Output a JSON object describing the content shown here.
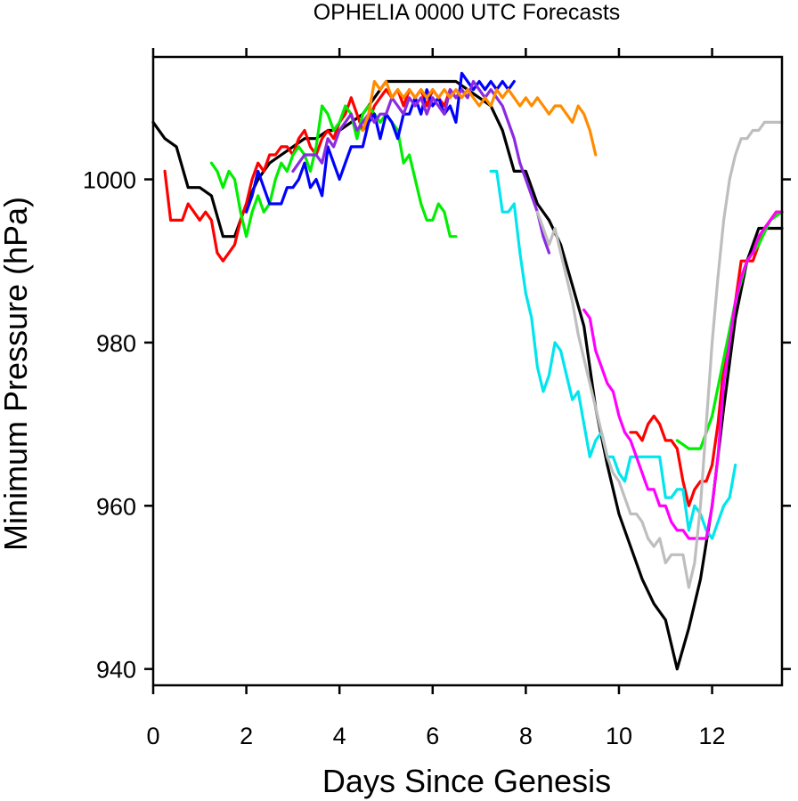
{
  "chart_data": {
    "type": "line",
    "title": "OPHELIA 0000 UTC Forecasts",
    "xlabel": "Days Since Genesis",
    "ylabel": "Minimum Pressure (hPa)",
    "xlim": [
      0,
      13.5
    ],
    "ylim": [
      938,
      1015
    ],
    "xticks": [
      0,
      2,
      4,
      6,
      8,
      10,
      12
    ],
    "yticks": [
      940,
      960,
      980,
      1000
    ],
    "grid": false,
    "legend": "none",
    "series": [
      {
        "color": "#000000",
        "x": [
          0,
          0.25,
          0.5,
          0.75,
          1,
          1.25,
          1.5,
          1.75,
          2,
          2.25,
          2.5,
          2.75,
          3,
          3.25,
          3.5,
          3.75,
          4,
          4.25,
          4.5,
          4.75,
          5,
          5.25,
          5.5,
          5.75,
          6,
          6.25,
          6.5,
          6.75,
          7,
          7.25,
          7.5,
          7.75,
          8,
          8.25,
          8.5,
          8.75,
          9,
          9.25,
          9.5,
          9.75,
          10,
          10.25,
          10.5,
          10.75,
          11,
          11.25,
          11.5,
          11.75,
          12,
          12.25,
          12.5,
          12.75,
          13,
          13.25,
          13.5
        ],
        "y": [
          1007,
          1005,
          1004,
          999,
          999,
          998,
          993,
          993,
          997,
          1000,
          1002,
          1003,
          1004,
          1005,
          1005,
          1006,
          1006,
          1007,
          1008,
          1010,
          1012,
          1012,
          1012,
          1012,
          1012,
          1012,
          1012,
          1011,
          1010,
          1009,
          1006,
          1001,
          1001,
          997,
          995,
          992,
          987,
          982,
          972,
          965,
          959,
          955,
          951,
          948,
          946,
          940,
          945,
          951,
          960,
          972,
          983,
          990,
          994,
          994,
          994
        ]
      },
      {
        "color": "#ff0000",
        "x": [
          0.25,
          0.375,
          0.5,
          0.625,
          0.75,
          0.875,
          1,
          1.125,
          1.25,
          1.375,
          1.5,
          1.625,
          1.75,
          1.875,
          2,
          2.125,
          2.25,
          2.375,
          2.5,
          2.625,
          2.75,
          2.875,
          3,
          3.125,
          3.25,
          3.375,
          3.5,
          3.625,
          3.75,
          3.875,
          4,
          4.125,
          4.25,
          4.375,
          4.5,
          4.625,
          4.75,
          4.875,
          5,
          5.125,
          5.25,
          5.375,
          5.5,
          5.625,
          5.75,
          5.875,
          6,
          6.125,
          6.25,
          6.375,
          6.5,
          6.625,
          6.75
        ],
        "y": [
          1001,
          995,
          995,
          995,
          997,
          996,
          995,
          996,
          995,
          991,
          990,
          991,
          992,
          995,
          997,
          1000,
          1002,
          1001,
          1003,
          1003,
          1004,
          1004,
          1003,
          1005,
          1006,
          1004,
          1003,
          1005,
          1006,
          1005,
          1007,
          1008,
          1010,
          1008,
          1006,
          1007,
          1009,
          1010,
          1011,
          1010,
          1011,
          1009,
          1011,
          1010,
          1011,
          1009,
          1011,
          1010,
          1009,
          1011,
          1010,
          1011,
          1010
        ]
      },
      {
        "color": "#ff0000",
        "x": [
          10.25,
          10.375,
          10.5,
          10.625,
          10.75,
          10.875,
          11,
          11.125,
          11.25,
          11.375,
          11.5,
          11.625,
          11.75,
          11.875,
          12,
          12.125,
          12.25,
          12.375,
          12.5,
          12.625,
          12.75,
          12.875,
          13,
          13.125,
          13.25,
          13.375,
          13.5
        ],
        "y": [
          969,
          969,
          968,
          970,
          971,
          970,
          968,
          968,
          967,
          963,
          960,
          962,
          963,
          963,
          965,
          970,
          977,
          981,
          985,
          990,
          990,
          990,
          992,
          994,
          995,
          996,
          996
        ]
      },
      {
        "color": "#00ee00",
        "x": [
          1.25,
          1.375,
          1.5,
          1.625,
          1.75,
          1.875,
          2,
          2.125,
          2.25,
          2.375,
          2.5,
          2.625,
          2.75,
          2.875,
          3,
          3.125,
          3.25,
          3.375,
          3.5,
          3.625,
          3.75,
          3.875,
          4,
          4.125,
          4.25,
          4.375,
          4.5,
          4.625,
          4.75,
          4.875,
          5,
          5.125,
          5.25,
          5.375,
          5.5,
          5.625,
          5.75,
          5.875,
          6,
          6.125,
          6.25,
          6.375,
          6.5
        ],
        "y": [
          1002,
          1001,
          999,
          1001,
          1000,
          996,
          993,
          996,
          998,
          996,
          997,
          1000,
          1002,
          1001,
          1003,
          1004,
          1003,
          1001,
          1004,
          1009,
          1008,
          1006,
          1007,
          1009,
          1008,
          1005,
          1008,
          1009,
          1008,
          1007,
          1008,
          1007,
          1006,
          1002,
          1003,
          1000,
          997,
          995,
          995,
          997,
          996,
          993,
          993
        ]
      },
      {
        "color": "#00ee00",
        "x": [
          11.25,
          11.5,
          11.75,
          12,
          12.25,
          12.5,
          12.75,
          13,
          13.25,
          13.5
        ],
        "y": [
          968,
          967,
          967,
          971,
          978,
          985,
          990,
          992,
          995,
          996
        ]
      },
      {
        "color": "#0000ff",
        "x": [
          2,
          2.125,
          2.25,
          2.375,
          2.5,
          2.625,
          2.75,
          2.875,
          3,
          3.125,
          3.25,
          3.375,
          3.5,
          3.625,
          3.75,
          3.875,
          4,
          4.125,
          4.25,
          4.375,
          4.5,
          4.625,
          4.75,
          4.875,
          5,
          5.125,
          5.25,
          5.375,
          5.5,
          5.625,
          5.75,
          5.875,
          6,
          6.125,
          6.25,
          6.375,
          6.5,
          6.625,
          6.75,
          6.875,
          7,
          7.125,
          7.25,
          7.375,
          7.5,
          7.625,
          7.75
        ],
        "y": [
          996,
          998,
          1001,
          999,
          997,
          997,
          997,
          999,
          999,
          1000,
          1002,
          999,
          1000,
          998,
          1004,
          1002,
          1000,
          1002,
          1004,
          1004,
          1004,
          1007,
          1008,
          1005,
          1008,
          1007,
          1005,
          1008,
          1008,
          1010,
          1008,
          1011,
          1009,
          1010,
          1008,
          1009,
          1007,
          1013,
          1012,
          1011,
          1012,
          1011,
          1012,
          1011,
          1012,
          1011,
          1012
        ]
      },
      {
        "color": "#8a2be2",
        "x": [
          3,
          3.125,
          3.25,
          3.375,
          3.5,
          3.625,
          3.75,
          3.875,
          4,
          4.125,
          4.25,
          4.375,
          4.5,
          4.625,
          4.75,
          4.875,
          5,
          5.125,
          5.25,
          5.375,
          5.5,
          5.625,
          5.75,
          5.875,
          6,
          6.125,
          6.25,
          6.375,
          6.5,
          6.625,
          6.75,
          6.875,
          7,
          7.125,
          7.25,
          7.375,
          7.5,
          7.625,
          7.75,
          7.875,
          8,
          8.125,
          8.25,
          8.375,
          8.5
        ],
        "y": [
          1001,
          1002,
          1003,
          1003,
          1003,
          1002,
          1005,
          1004,
          1006,
          1007,
          1008,
          1006,
          1007,
          1008,
          1007,
          1008,
          1008,
          1010,
          1009,
          1008,
          1010,
          1009,
          1010,
          1008,
          1010,
          1009,
          1008,
          1011,
          1010,
          1011,
          1010,
          1012,
          1011,
          1010,
          1011,
          1010,
          1009,
          1007,
          1005,
          1002,
          1000,
          998,
          996,
          993,
          991
        ]
      },
      {
        "color": "#ff8c00",
        "x": [
          4.5,
          4.625,
          4.75,
          4.875,
          5,
          5.125,
          5.25,
          5.375,
          5.5,
          5.625,
          5.75,
          5.875,
          6,
          6.125,
          6.25,
          6.375,
          6.5,
          6.625,
          6.75,
          6.875,
          7,
          7.125,
          7.25,
          7.375,
          7.5,
          7.625,
          7.75,
          7.875,
          8,
          8.125,
          8.25,
          8.375,
          8.5,
          8.625,
          8.75,
          8.875,
          9,
          9.125,
          9.25,
          9.375,
          9.5
        ],
        "y": [
          1006,
          1008,
          1012,
          1011,
          1012,
          1010,
          1011,
          1010,
          1011,
          1010,
          1011,
          1010,
          1011,
          1010,
          1011,
          1010,
          1011,
          1010,
          1011,
          1010,
          1009,
          1010,
          1009,
          1011,
          1010,
          1011,
          1010,
          1009,
          1010,
          1009,
          1010,
          1009,
          1008,
          1009,
          1009,
          1008,
          1007,
          1009,
          1008,
          1006,
          1003
        ]
      },
      {
        "color": "#00e5ee",
        "x": [
          7.25,
          7.375,
          7.5,
          7.625,
          7.75,
          7.875,
          8,
          8.125,
          8.25,
          8.375,
          8.5,
          8.625,
          8.75,
          8.875,
          9,
          9.125,
          9.25,
          9.375,
          9.5,
          9.625,
          9.75,
          9.875,
          10,
          10.125,
          10.25,
          10.375,
          10.5,
          10.625,
          10.75,
          10.875,
          11,
          11.125,
          11.25,
          11.375,
          11.5,
          11.625,
          11.75,
          11.875,
          12,
          12.125,
          12.25,
          12.375,
          12.5
        ],
        "y": [
          1001,
          1001,
          996,
          996,
          997,
          991,
          986,
          983,
          977,
          974,
          976,
          980,
          979,
          976,
          973,
          974,
          970,
          966,
          968,
          969,
          966,
          966,
          964,
          963,
          966,
          966,
          966,
          966,
          966,
          966,
          961,
          961,
          962,
          962,
          957,
          960,
          959,
          957,
          956,
          958,
          960,
          961,
          965
        ]
      },
      {
        "color": "#ff00ff",
        "x": [
          9.25,
          9.375,
          9.5,
          9.625,
          9.75,
          9.875,
          10,
          10.125,
          10.25,
          10.375,
          10.5,
          10.625,
          10.75,
          10.875,
          11,
          11.125,
          11.25,
          11.375,
          11.5,
          11.625,
          11.75,
          11.875,
          12,
          12.125,
          12.25,
          12.375,
          12.5,
          12.625,
          12.75,
          12.875,
          13,
          13.125,
          13.25,
          13.375,
          13.5
        ],
        "y": [
          984,
          983,
          979,
          977,
          975,
          974,
          971,
          969,
          968,
          966,
          964,
          962,
          962,
          960,
          960,
          958,
          957,
          957,
          956,
          956,
          956,
          956,
          960,
          966,
          975,
          980,
          985,
          988,
          990,
          991,
          993,
          994,
          995,
          996,
          996
        ]
      },
      {
        "color": "#bebebe",
        "x": [
          8.25,
          8.375,
          8.5,
          8.625,
          8.75,
          8.875,
          9,
          9.125,
          9.25,
          9.375,
          9.5,
          9.625,
          9.75,
          9.875,
          10,
          10.125,
          10.25,
          10.375,
          10.5,
          10.625,
          10.75,
          10.875,
          11,
          11.125,
          11.25,
          11.375,
          11.5,
          11.625,
          11.75,
          11.875,
          12,
          12.125,
          12.25,
          12.375,
          12.5,
          12.625,
          12.75,
          12.875,
          13,
          13.125,
          13.25,
          13.375,
          13.5
        ],
        "y": [
          996,
          994,
          992,
          994,
          991,
          988,
          985,
          981,
          978,
          975,
          972,
          969,
          966,
          964,
          963,
          961,
          959,
          959,
          958,
          956,
          955,
          956,
          953,
          954,
          954,
          954,
          950,
          953,
          960,
          970,
          980,
          988,
          995,
          1000,
          1003,
          1005,
          1005,
          1006,
          1006,
          1007,
          1007,
          1007,
          1007
        ]
      }
    ]
  }
}
